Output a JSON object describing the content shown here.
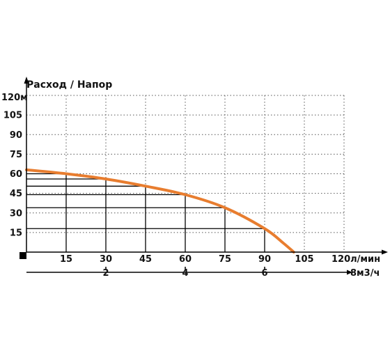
{
  "chart_data": {
    "type": "line",
    "title": "Расход / Напор",
    "x_unit_label": "120л/мин",
    "y_unit_label": "120м",
    "x_ticks": [
      15,
      30,
      45,
      60,
      75,
      90,
      105
    ],
    "y_ticks": [
      15,
      30,
      45,
      60,
      75,
      90,
      105
    ],
    "xlim": [
      0,
      120
    ],
    "ylim": [
      0,
      120
    ],
    "secondary_axis": {
      "ticks": [
        2,
        4,
        6
      ],
      "unit_label": "8м3/ч"
    },
    "grid": true,
    "series": [
      {
        "color": "#E87D2F",
        "x": [
          0,
          15,
          30,
          45,
          60,
          75,
          90,
          97,
          101
        ],
        "y": [
          63,
          60,
          56,
          50.5,
          44,
          34,
          18,
          7,
          0
        ]
      }
    ],
    "highlight_points": [
      {
        "x": 15,
        "y": 60
      },
      {
        "x": 30,
        "y": 56
      },
      {
        "x": 45,
        "y": 50.5
      },
      {
        "x": 60,
        "y": 44
      },
      {
        "x": 75,
        "y": 34
      },
      {
        "x": 90,
        "y": 18
      }
    ]
  }
}
